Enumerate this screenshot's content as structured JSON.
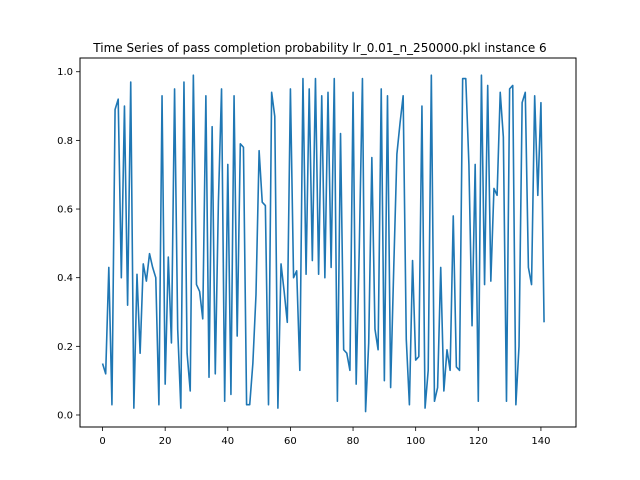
{
  "chart_data": {
    "type": "line",
    "title": "Time Series of pass completion probability lr_0.01_n_250000.pkl instance 6",
    "xlabel": "",
    "ylabel": "",
    "xlim": [
      -7.2,
      151.2
    ],
    "ylim": [
      -0.035,
      1.04
    ],
    "xticks": [
      0,
      20,
      40,
      60,
      80,
      100,
      120,
      140
    ],
    "yticks": [
      0.0,
      0.2,
      0.4,
      0.6,
      0.8,
      1.0
    ],
    "ytick_labels": [
      "0.0",
      "0.2",
      "0.4",
      "0.6",
      "0.8",
      "1.0"
    ],
    "grid": false,
    "legend": "none",
    "series": [
      {
        "color": "#1f77b4",
        "y": [
          0.15,
          0.12,
          0.43,
          0.03,
          0.89,
          0.92,
          0.4,
          0.9,
          0.32,
          0.97,
          0.02,
          0.41,
          0.18,
          0.44,
          0.39,
          0.47,
          0.43,
          0.4,
          0.03,
          0.93,
          0.09,
          0.46,
          0.21,
          0.95,
          0.25,
          0.02,
          0.97,
          0.18,
          0.07,
          0.99,
          0.38,
          0.36,
          0.28,
          0.93,
          0.11,
          0.84,
          0.12,
          0.62,
          0.95,
          0.04,
          0.73,
          0.06,
          0.93,
          0.23,
          0.79,
          0.78,
          0.03,
          0.03,
          0.15,
          0.35,
          0.77,
          0.62,
          0.61,
          0.03,
          0.94,
          0.87,
          0.02,
          0.44,
          0.36,
          0.27,
          0.95,
          0.4,
          0.42,
          0.13,
          0.98,
          0.41,
          0.95,
          0.45,
          0.98,
          0.41,
          0.93,
          0.4,
          0.94,
          0.43,
          0.98,
          0.04,
          0.82,
          0.19,
          0.18,
          0.13,
          0.94,
          0.09,
          0.49,
          0.98,
          0.01,
          0.21,
          0.75,
          0.25,
          0.19,
          0.95,
          0.1,
          0.93,
          0.08,
          0.43,
          0.76,
          0.85,
          0.93,
          0.22,
          0.03,
          0.45,
          0.16,
          0.17,
          0.9,
          0.02,
          0.13,
          0.99,
          0.04,
          0.08,
          0.43,
          0.07,
          0.19,
          0.13,
          0.58,
          0.14,
          0.13,
          0.98,
          0.98,
          0.73,
          0.26,
          0.73,
          0.04,
          0.99,
          0.38,
          0.96,
          0.39,
          0.66,
          0.64,
          0.94,
          0.81,
          0.04,
          0.95,
          0.96,
          0.03,
          0.2,
          0.91,
          0.94,
          0.43,
          0.38,
          0.93,
          0.64,
          0.91,
          0.27
        ]
      }
    ]
  }
}
